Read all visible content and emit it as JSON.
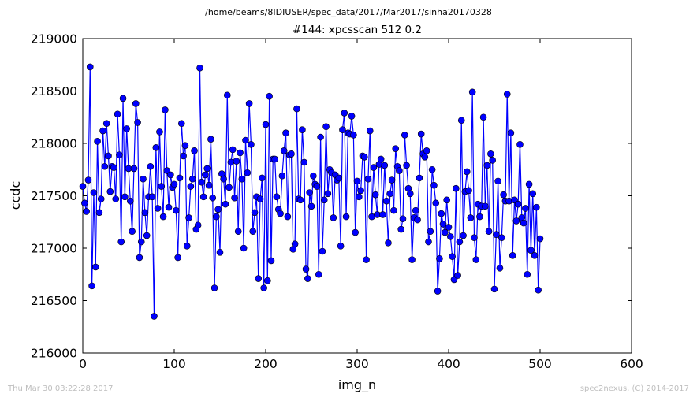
{
  "header": {
    "path": "/home/beams/8IDIUSER/spec_data/2017/Mar2017/sinha20170328"
  },
  "footer": {
    "timestamp": "Thu Mar 30 03:22:28 2017",
    "credit": "spec2nexus, (C) 2014-2017"
  },
  "colors": {
    "series": "#0000ff",
    "marker_edge": "#000000"
  },
  "chart_data": {
    "type": "line",
    "title": "#144: xpcsscan 512 0.2",
    "xlabel": "img_n",
    "ylabel": "ccdc",
    "xlim": [
      0,
      600
    ],
    "ylim": [
      216000,
      219000
    ],
    "xticks": [
      0,
      100,
      200,
      300,
      400,
      500,
      600
    ],
    "yticks": [
      216000,
      216500,
      217000,
      217500,
      218000,
      218500,
      219000
    ],
    "grid": false,
    "marker": "circle",
    "series": [
      {
        "x_start": 0,
        "x_step": 2,
        "values": [
          217590,
          217430,
          217350,
          217650,
          218730,
          216640,
          217530,
          216820,
          218020,
          217340,
          217470,
          218120,
          217780,
          218190,
          217880,
          217540,
          217780,
          217770,
          217470,
          218280,
          217890,
          217060,
          218430,
          217490,
          218140,
          217760,
          217450,
          217160,
          217760,
          218380,
          218200,
          216910,
          217060,
          217660,
          217340,
          217120,
          217490,
          217780,
          217490,
          216350,
          217960,
          217380,
          218110,
          217590,
          217300,
          218320,
          217740,
          217390,
          217700,
          217580,
          217610,
          217360,
          216910,
          217670,
          218190,
          217880,
          217980,
          217020,
          217290,
          217590,
          217660,
          217930,
          217180,
          217220,
          218720,
          217630,
          217490,
          217700,
          217760,
          217600,
          218040,
          217480,
          216620,
          217300,
          217370,
          216960,
          217710,
          217660,
          217420,
          218460,
          217580,
          217820,
          217940,
          217480,
          217830,
          217160,
          217910,
          217660,
          217000,
          218030,
          217720,
          218380,
          217990,
          217160,
          217340,
          217490,
          216710,
          217470,
          217670,
          216620,
          218180,
          216690,
          218450,
          216880,
          217850,
          217850,
          217490,
          217370,
          217330,
          217690,
          217930,
          218100,
          217300,
          217890,
          217900,
          216990,
          217040,
          218330,
          217470,
          217460,
          218130,
          217820,
          216800,
          216710,
          217530,
          217400,
          217690,
          217610,
          217590,
          216750,
          218060,
          216970,
          217460,
          218160,
          217520,
          217750,
          217720,
          217290,
          217700,
          217650,
          217670,
          217020,
          218130,
          218290,
          217300,
          218100,
          218090,
          218260,
          218080,
          217150,
          217640,
          217490,
          217550,
          217880,
          217870,
          216890,
          217660,
          218120,
          217300,
          217770,
          217510,
          217320,
          217800,
          217850,
          217320,
          217790,
          217450,
          217050,
          217520,
          217650,
          217360,
          217950,
          217780,
          217740,
          217180,
          217280,
          218080,
          217790,
          217570,
          217520,
          216890,
          217290,
          217360,
          217270,
          217670,
          218090,
          217900,
          217870,
          217930,
          217060,
          217160,
          217750,
          217600,
          217430,
          216590,
          216900,
          217330,
          217230,
          217150,
          217460,
          217200,
          217110,
          216920,
          216700,
          217570,
          216740,
          217060,
          218220,
          217120,
          217540,
          217730,
          217550,
          217290,
          218490,
          217100,
          216890,
          217420,
          217300,
          217400,
          218250,
          217400,
          217790,
          217160,
          217900,
          217840,
          216610,
          217130,
          217640,
          216810,
          217100,
          217510,
          217450,
          218470,
          217450,
          218100,
          216930,
          217460,
          217260,
          217420,
          217990,
          217290,
          217240,
          217380,
          216750,
          217610,
          216980,
          217520,
          216930,
          217390,
          216600,
          217090
        ]
      }
    ]
  }
}
